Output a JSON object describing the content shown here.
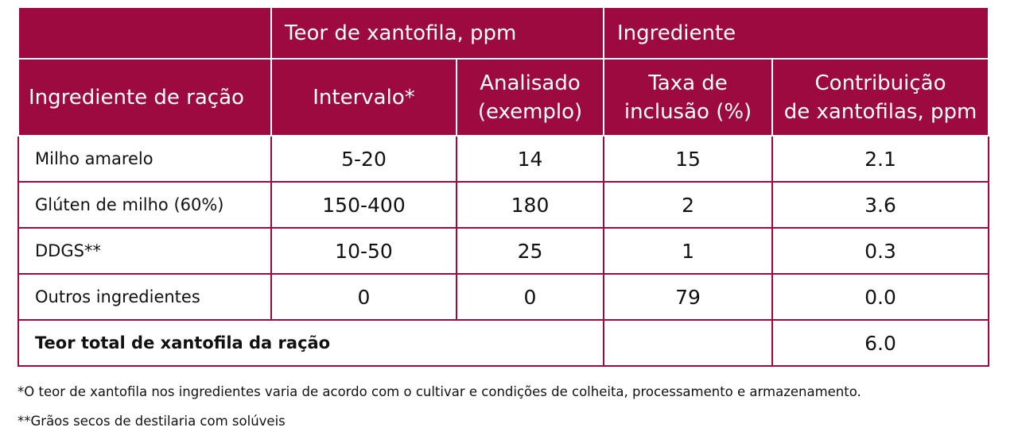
{
  "table": {
    "header_top": [
      "Teor de xantofila, ppm",
      "Ingrediente"
    ],
    "header": [
      [
        "Ingrediente de ração"
      ],
      [
        "Intervalo*"
      ],
      [
        "Analisado",
        "(exemplo)"
      ],
      [
        "Taxa de",
        "inclusão (%)"
      ],
      [
        "Contribuição",
        "de xantofilas, ppm"
      ]
    ],
    "rows": [
      [
        "Milho amarelo",
        "5-20",
        "14",
        "15",
        "2.1"
      ],
      [
        "Glúten de milho (60%)",
        "150-400",
        "180",
        "2",
        "3.6"
      ],
      [
        "DDGS**",
        "10-50",
        "25",
        "1",
        "0.3"
      ],
      [
        "Outros ingredientes",
        "0",
        "0",
        "79",
        "0.0"
      ]
    ],
    "total": {
      "label": "Teor total de xantofila da ração",
      "value": "6.0"
    }
  },
  "footnotes": [
    "*O teor de xantofila nos ingredientes varia de acordo com o cultivar e condições de colheita, processamento e armazenamento.",
    "**Grãos secos de destilaria com solúveis"
  ]
}
